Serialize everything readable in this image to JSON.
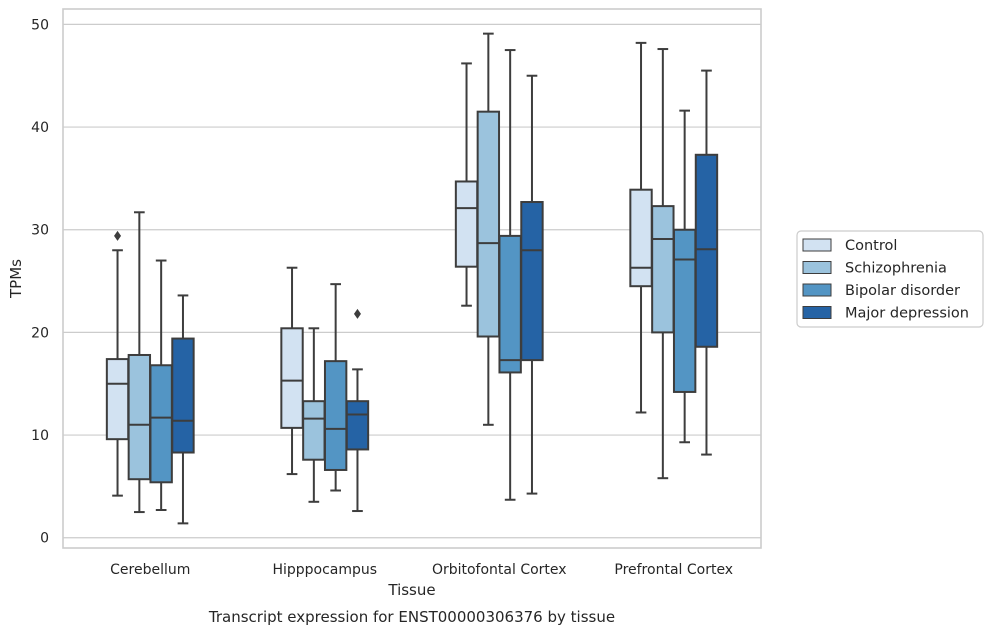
{
  "chart_data": {
    "type": "box",
    "xlabel": "Tissue",
    "ylabel": "TPMs",
    "caption": "Transcript expression for ENST00000306376 by tissue",
    "ylim": [
      -1,
      51.5
    ],
    "yticks": [
      "0",
      "10",
      "20",
      "30",
      "40",
      "50"
    ],
    "grid": "horizontal",
    "legend_position": "right",
    "categories": [
      "Cerebellum",
      "Hipppocampus",
      "Orbitofontal Cortex",
      "Prefrontal Cortex"
    ],
    "series": [
      {
        "name": "Control",
        "color": "#d2e2f2",
        "boxes": [
          {
            "whislo": 4.1,
            "q1": 9.6,
            "median": 15.0,
            "q3": 17.4,
            "whishi": 28.0,
            "fliers": [
              29.4
            ]
          },
          {
            "whislo": 6.2,
            "q1": 10.7,
            "median": 15.3,
            "q3": 20.4,
            "whishi": 26.3,
            "fliers": []
          },
          {
            "whislo": 22.6,
            "q1": 26.4,
            "median": 32.1,
            "q3": 34.7,
            "whishi": 46.2,
            "fliers": []
          },
          {
            "whislo": 12.2,
            "q1": 24.5,
            "median": 26.3,
            "q3": 33.9,
            "whishi": 48.2,
            "fliers": []
          }
        ]
      },
      {
        "name": "Schizophrenia",
        "color": "#9bc3dd",
        "boxes": [
          {
            "whislo": 2.5,
            "q1": 5.7,
            "median": 11.0,
            "q3": 17.8,
            "whishi": 31.7,
            "fliers": []
          },
          {
            "whislo": 3.5,
            "q1": 7.6,
            "median": 11.6,
            "q3": 13.3,
            "whishi": 20.4,
            "fliers": []
          },
          {
            "whislo": 11.0,
            "q1": 19.6,
            "median": 28.7,
            "q3": 41.5,
            "whishi": 49.1,
            "fliers": []
          },
          {
            "whislo": 5.8,
            "q1": 20.0,
            "median": 29.1,
            "q3": 32.3,
            "whishi": 47.6,
            "fliers": []
          }
        ]
      },
      {
        "name": "Bipolar disorder",
        "color": "#5395c4",
        "boxes": [
          {
            "whislo": 2.7,
            "q1": 5.4,
            "median": 11.7,
            "q3": 16.8,
            "whishi": 27.0,
            "fliers": []
          },
          {
            "whislo": 4.6,
            "q1": 6.6,
            "median": 10.6,
            "q3": 17.2,
            "whishi": 24.7,
            "fliers": []
          },
          {
            "whislo": 3.7,
            "q1": 16.1,
            "median": 17.3,
            "q3": 29.4,
            "whishi": 47.5,
            "fliers": []
          },
          {
            "whislo": 9.3,
            "q1": 14.2,
            "median": 27.1,
            "q3": 30.0,
            "whishi": 41.6,
            "fliers": []
          }
        ]
      },
      {
        "name": "Major depression",
        "color": "#2563a5",
        "boxes": [
          {
            "whislo": 1.4,
            "q1": 8.3,
            "median": 11.4,
            "q3": 19.4,
            "whishi": 23.6,
            "fliers": []
          },
          {
            "whislo": 2.6,
            "q1": 8.6,
            "median": 12.0,
            "q3": 13.3,
            "whishi": 16.4,
            "fliers": [
              21.8
            ]
          },
          {
            "whislo": 4.3,
            "q1": 17.3,
            "median": 28.0,
            "q3": 32.7,
            "whishi": 45.0,
            "fliers": []
          },
          {
            "whislo": 8.1,
            "q1": 18.6,
            "median": 28.1,
            "q3": 37.3,
            "whishi": 45.5,
            "fliers": []
          }
        ]
      }
    ]
  }
}
